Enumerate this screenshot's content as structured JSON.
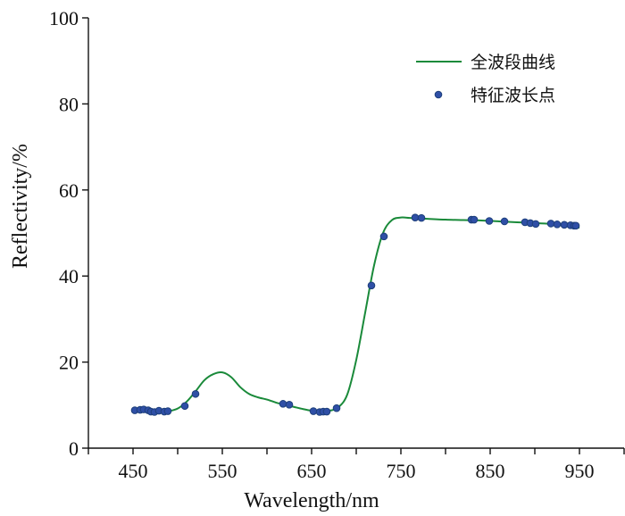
{
  "chart_data": {
    "type": "line",
    "xlabel": "Wavelength/nm",
    "ylabel": "Reflectivity/%",
    "xlim": [
      400,
      1000
    ],
    "ylim": [
      0,
      100
    ],
    "x_ticks": [
      450,
      550,
      650,
      750,
      850,
      950
    ],
    "y_ticks": [
      0,
      20,
      40,
      60,
      80,
      100
    ],
    "legend_position": "top-right",
    "colors": {
      "line": "#1a8a3a",
      "marker_fill": "#2f4fa6",
      "marker_edge": "#1d3f7a"
    },
    "series": [
      {
        "name": "全波段曲线",
        "style": "line",
        "x": [
          450,
          460,
          470,
          480,
          490,
          500,
          510,
          520,
          530,
          540,
          550,
          560,
          570,
          580,
          590,
          600,
          610,
          620,
          630,
          640,
          650,
          660,
          670,
          680,
          690,
          700,
          710,
          720,
          730,
          740,
          750,
          760,
          770,
          780,
          800,
          820,
          840,
          860,
          880,
          900,
          920,
          940,
          950
        ],
        "y": [
          8.8,
          8.7,
          8.6,
          8.5,
          8.6,
          9.2,
          10.8,
          13.2,
          15.8,
          17.2,
          17.6,
          16.5,
          14.2,
          12.6,
          11.8,
          11.3,
          10.6,
          10.1,
          9.6,
          9.1,
          8.7,
          8.5,
          8.7,
          9.5,
          12.5,
          20.5,
          31.5,
          42.5,
          50.0,
          53.0,
          53.6,
          53.5,
          53.4,
          53.3,
          53.1,
          53.0,
          52.9,
          52.7,
          52.5,
          52.3,
          52.1,
          51.8,
          51.2
        ]
      },
      {
        "name": "特征波长点",
        "style": "scatter",
        "x": [
          452,
          458,
          462,
          467,
          470,
          474,
          479,
          485,
          489,
          508,
          520,
          618,
          625,
          652,
          659,
          663,
          667,
          678,
          717,
          731,
          766,
          773,
          829,
          832,
          849,
          866,
          889,
          895,
          901,
          918,
          925,
          933,
          940,
          944,
          946
        ],
        "y": [
          8.8,
          8.9,
          9.0,
          8.8,
          8.5,
          8.4,
          8.7,
          8.5,
          8.6,
          9.8,
          12.6,
          10.3,
          10.1,
          8.6,
          8.4,
          8.5,
          8.5,
          9.3,
          37.8,
          49.2,
          53.6,
          53.5,
          53.1,
          53.1,
          52.8,
          52.7,
          52.5,
          52.3,
          52.1,
          52.2,
          52.0,
          51.9,
          51.8,
          51.7,
          51.7
        ]
      }
    ]
  }
}
